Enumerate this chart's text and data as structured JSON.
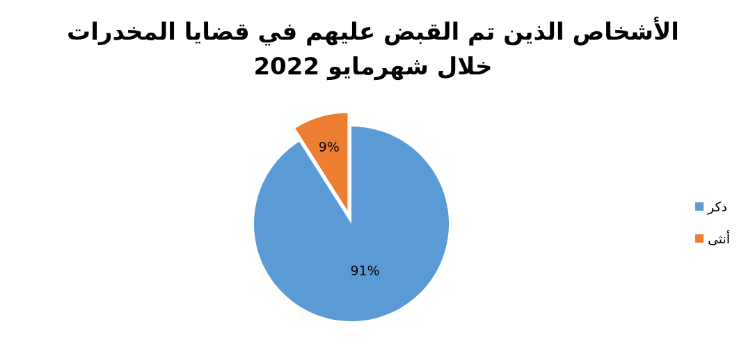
{
  "chart_data": {
    "type": "pie",
    "title": "الأشخاص الذين تم القبض عليهم في قضايا المخدرات خلال شهرمايو 2022",
    "categories": [
      "ذكر",
      "أنثى"
    ],
    "values": [
      91,
      9
    ],
    "colors": [
      "#5b9bd5",
      "#ed7d31"
    ],
    "value_labels": [
      "91%",
      "9%"
    ],
    "legend": "right"
  }
}
